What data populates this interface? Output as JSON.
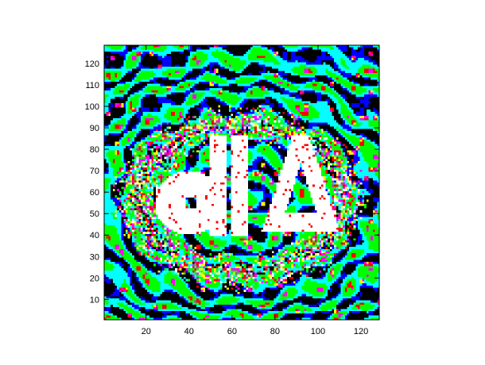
{
  "chart_data": {
    "type": "heatmap",
    "title": "",
    "xlabel": "",
    "ylabel": "",
    "grid_size": [
      128,
      128
    ],
    "xlim": [
      1,
      128
    ],
    "ylim": [
      1,
      128
    ],
    "x_ticks": [
      20,
      40,
      60,
      80,
      100,
      120
    ],
    "y_ticks": [
      10,
      20,
      30,
      40,
      50,
      60,
      70,
      80,
      90,
      100,
      110,
      120
    ],
    "colormap": [
      "#000000",
      "#0000ff",
      "#00ffff",
      "#00ff00",
      "#ff0000",
      "#ff00ff",
      "#ffff00",
      "#ffffff"
    ],
    "description_of_pattern": "",
    "saturated_glyphs_reading": "dlA (mirrored)",
    "glyph_color": "#ffffff",
    "background_color": "#000000",
    "frame_color": "#000000"
  }
}
